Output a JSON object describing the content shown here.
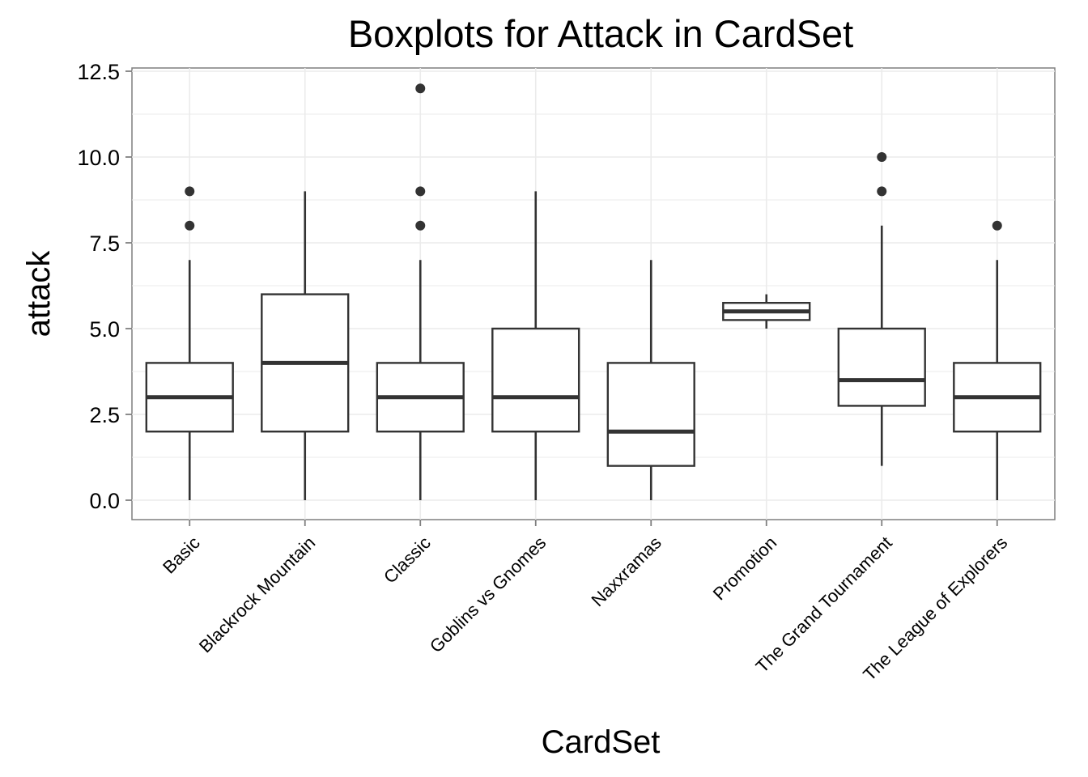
{
  "chart_data": {
    "type": "boxplot",
    "title": "Boxplots for Attack in CardSet",
    "xlabel": "CardSet",
    "ylabel": "attack",
    "ylim": [
      -0.55,
      12.5
    ],
    "y_ticks": [
      "0.0",
      "2.5",
      "5.0",
      "7.5",
      "10.0",
      "12.5"
    ],
    "y_tick_values": [
      0,
      2.5,
      5,
      7.5,
      10,
      12.5
    ],
    "grid": true,
    "categories": [
      "Basic",
      "Blackrock Mountain",
      "Classic",
      "Goblins vs Gnomes",
      "Naxxramas",
      "Promotion",
      "The Grand Tournament",
      "The League of Explorers"
    ],
    "boxes": [
      {
        "min": 0,
        "q1": 2,
        "median": 3,
        "q3": 4,
        "max": 7,
        "outliers": [
          8,
          9
        ]
      },
      {
        "min": 0,
        "q1": 2,
        "median": 4,
        "q3": 6,
        "max": 9,
        "outliers": []
      },
      {
        "min": 0,
        "q1": 2,
        "median": 3,
        "q3": 4,
        "max": 7,
        "outliers": [
          8,
          9,
          12
        ]
      },
      {
        "min": 0,
        "q1": 2,
        "median": 3,
        "q3": 5,
        "max": 9,
        "outliers": []
      },
      {
        "min": 0,
        "q1": 1,
        "median": 2,
        "q3": 4,
        "max": 7,
        "outliers": []
      },
      {
        "min": 5,
        "q1": 5.25,
        "median": 5.5,
        "q3": 5.75,
        "max": 6,
        "outliers": []
      },
      {
        "min": 1,
        "q1": 2.75,
        "median": 3.5,
        "q3": 5,
        "max": 8,
        "outliers": [
          9,
          10
        ]
      },
      {
        "min": 0,
        "q1": 2,
        "median": 3,
        "q3": 4,
        "max": 7,
        "outliers": [
          8
        ]
      }
    ],
    "colors": {
      "box_stroke": "#333333",
      "box_fill": "#ffffff",
      "grid": "#ebebeb",
      "panel_border": "#7f7f7f"
    }
  }
}
